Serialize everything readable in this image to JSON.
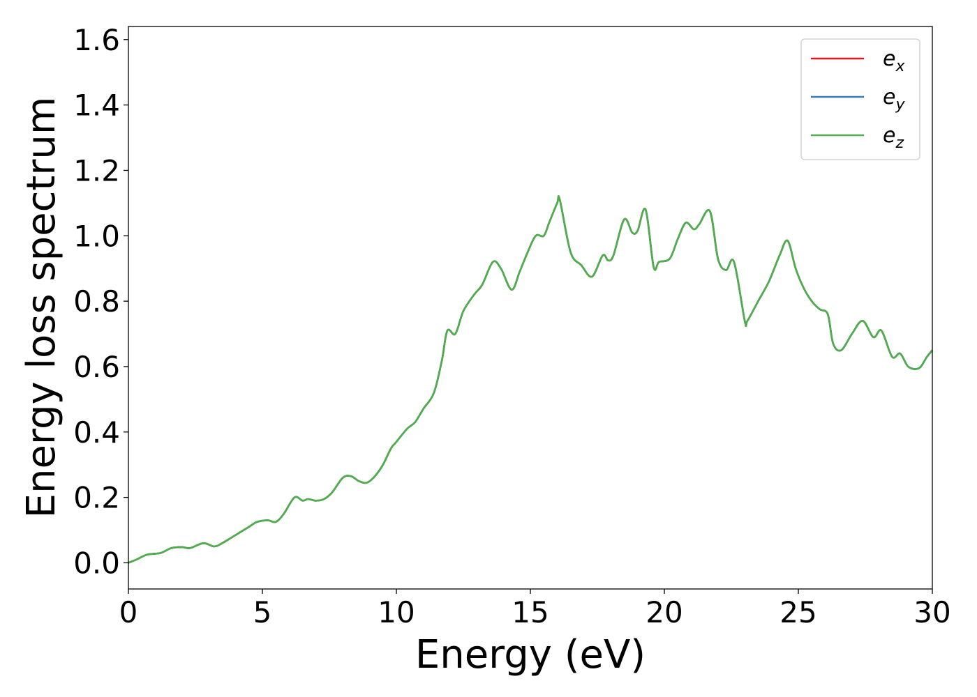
{
  "chart_data": {
    "type": "line",
    "xlabel": "Energy (eV)",
    "ylabel": "Energy loss spectrum",
    "xlim": [
      0,
      30
    ],
    "ylim": [
      -0.08,
      1.64
    ],
    "xticks": [
      "0",
      "5",
      "10",
      "15",
      "20",
      "25",
      "30"
    ],
    "yticks": [
      "0.0",
      "0.2",
      "0.4",
      "0.6",
      "0.8",
      "1.0",
      "1.2",
      "1.4",
      "1.6"
    ],
    "grid": false,
    "legend_position": "top-right",
    "series": [
      {
        "name": "e",
        "sub": "x",
        "color": "#e41a1c"
      },
      {
        "name": "e",
        "sub": "y",
        "color": "#377eb8"
      },
      {
        "name": "e",
        "sub": "z",
        "color": "#4daf4a"
      }
    ],
    "x": [
      0,
      0.3,
      0.7,
      1.2,
      1.6,
      2.0,
      2.3,
      2.8,
      3.2,
      3.5,
      4.0,
      4.5,
      4.8,
      5.2,
      5.5,
      5.8,
      6.2,
      6.5,
      6.7,
      7.0,
      7.3,
      7.6,
      8.0,
      8.3,
      8.6,
      8.9,
      9.2,
      9.5,
      9.8,
      10.0,
      10.4,
      10.7,
      11.0,
      11.4,
      11.7,
      11.9,
      12.2,
      12.5,
      12.9,
      13.2,
      13.6,
      13.9,
      14.3,
      14.6,
      14.9,
      15.2,
      15.5,
      15.7,
      16.0,
      16.1,
      16.5,
      16.9,
      17.3,
      17.7,
      17.9,
      18.1,
      18.5,
      18.8,
      19.0,
      19.3,
      19.6,
      19.8,
      20.2,
      20.5,
      20.8,
      21.1,
      21.3,
      21.7,
      22.0,
      22.3,
      22.6,
      23.0,
      23.1,
      23.5,
      23.9,
      24.3,
      24.6,
      24.9,
      25.2,
      25.5,
      25.8,
      26.1,
      26.3,
      26.6,
      27.0,
      27.4,
      27.8,
      28.1,
      28.5,
      28.8,
      29.1,
      29.5,
      29.8,
      30.0
    ],
    "y": [
      0.0,
      0.01,
      0.025,
      0.03,
      0.045,
      0.048,
      0.045,
      0.06,
      0.05,
      0.06,
      0.085,
      0.11,
      0.125,
      0.13,
      0.125,
      0.15,
      0.2,
      0.19,
      0.195,
      0.19,
      0.195,
      0.215,
      0.26,
      0.265,
      0.25,
      0.245,
      0.265,
      0.3,
      0.35,
      0.37,
      0.41,
      0.43,
      0.47,
      0.52,
      0.62,
      0.71,
      0.7,
      0.77,
      0.82,
      0.85,
      0.92,
      0.9,
      0.835,
      0.89,
      0.95,
      1.0,
      1.0,
      1.04,
      1.1,
      1.11,
      0.95,
      0.91,
      0.875,
      0.94,
      0.925,
      0.94,
      1.05,
      1.01,
      1.015,
      1.08,
      0.905,
      0.92,
      0.93,
      0.99,
      1.04,
      1.02,
      1.035,
      1.075,
      0.93,
      0.895,
      0.92,
      0.74,
      0.74,
      0.8,
      0.86,
      0.94,
      0.985,
      0.9,
      0.84,
      0.8,
      0.775,
      0.76,
      0.67,
      0.65,
      0.7,
      0.74,
      0.69,
      0.71,
      0.63,
      0.64,
      0.6,
      0.595,
      0.63,
      0.65
    ]
  }
}
